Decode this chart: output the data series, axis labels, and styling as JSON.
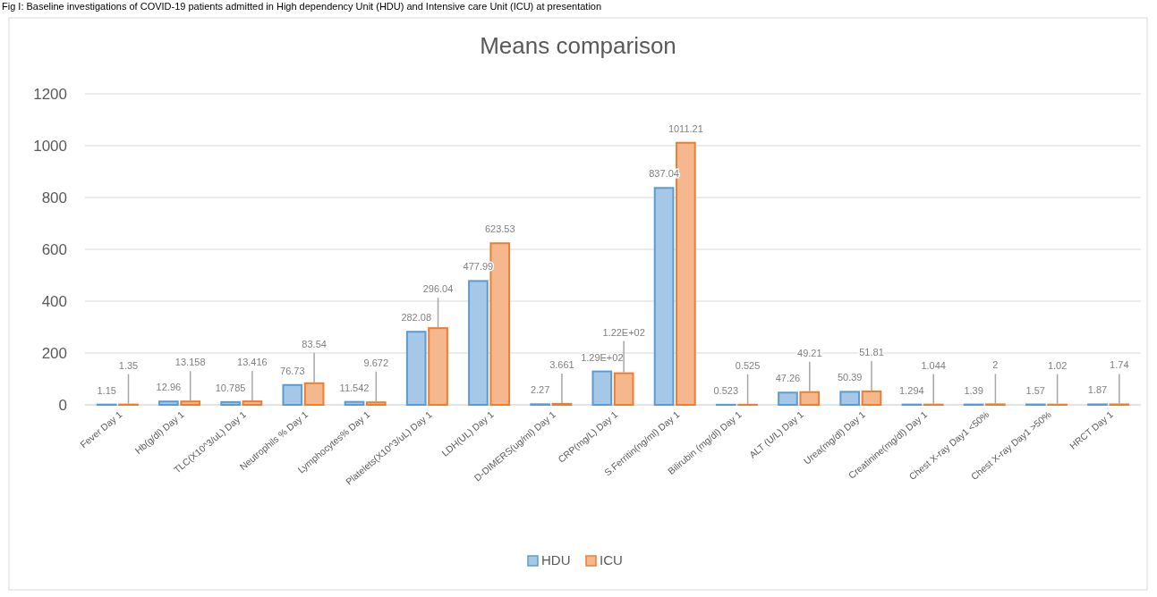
{
  "chart_data": {
    "type": "bar",
    "title": "Means comparison",
    "annotations": [
      "Fig I: Baseline investigations of COVID-19 patients admitted in High dependency Unit (HDU) and Intensive care Unit (ICU) at presentation"
    ],
    "categories": [
      "Fever Day 1",
      "Hb(g/dl) Day 1",
      "TLC(X10^3/uL) Day 1",
      "Neutrophils % Day 1",
      "Lymphocytes% Day 1",
      "Platelets(X10^3/uL) Day 1",
      "LDH(UL) Day 1",
      "D-DIMERS(ug/ml) Day 1",
      "CRP(mg/L) Day 1",
      "S.Ferritin(ng/ml) Day 1",
      "Bilirubin (mg/dl) Day 1",
      "ALT (U/L) Day 1",
      "Urea(mg/dl) Day 1",
      "Creatinine(mg/dl) Day 1",
      "Chest X-ray Day1 <50%",
      "Chest X-ray Day1 >50%",
      "HRCT Day 1"
    ],
    "series": [
      {
        "name": "HDU",
        "color": "#5b9bd5",
        "values": [
          1.15,
          12.96,
          10.785,
          76.73,
          11.542,
          282.08,
          477.99,
          2.27,
          129,
          837.04,
          0.523,
          47.26,
          50.39,
          1.294,
          1.39,
          1.57,
          1.87
        ],
        "value_labels": [
          "1.15",
          "12.96",
          "10.785",
          "76.73",
          "11.542",
          "282.08",
          "477.99",
          "2.27",
          "1.29E+02",
          "837.04",
          "0.523",
          "47.26",
          "50.39",
          "1.294",
          "1.39",
          "1.57",
          "1.87"
        ]
      },
      {
        "name": "ICU",
        "color": "#ed7d31",
        "values": [
          1.35,
          13.158,
          13.416,
          83.54,
          9.672,
          296.04,
          623.53,
          3.661,
          122,
          1011.21,
          0.525,
          49.21,
          51.81,
          1.044,
          2,
          1.02,
          1.74
        ],
        "value_labels": [
          "1.35",
          "13.158",
          "13.416",
          "83.54",
          "9.672",
          "296.04",
          "623.53",
          "3.661",
          "1.22E+02",
          "1011.21",
          "0.525",
          "49.21",
          "51.81",
          "1.044",
          "2",
          "1.02",
          "1.74"
        ]
      }
    ],
    "ylim": [
      0,
      1200
    ],
    "yticks": [
      0,
      200,
      400,
      600,
      800,
      1000,
      1200
    ],
    "grid": "y",
    "legend": "bottom"
  }
}
